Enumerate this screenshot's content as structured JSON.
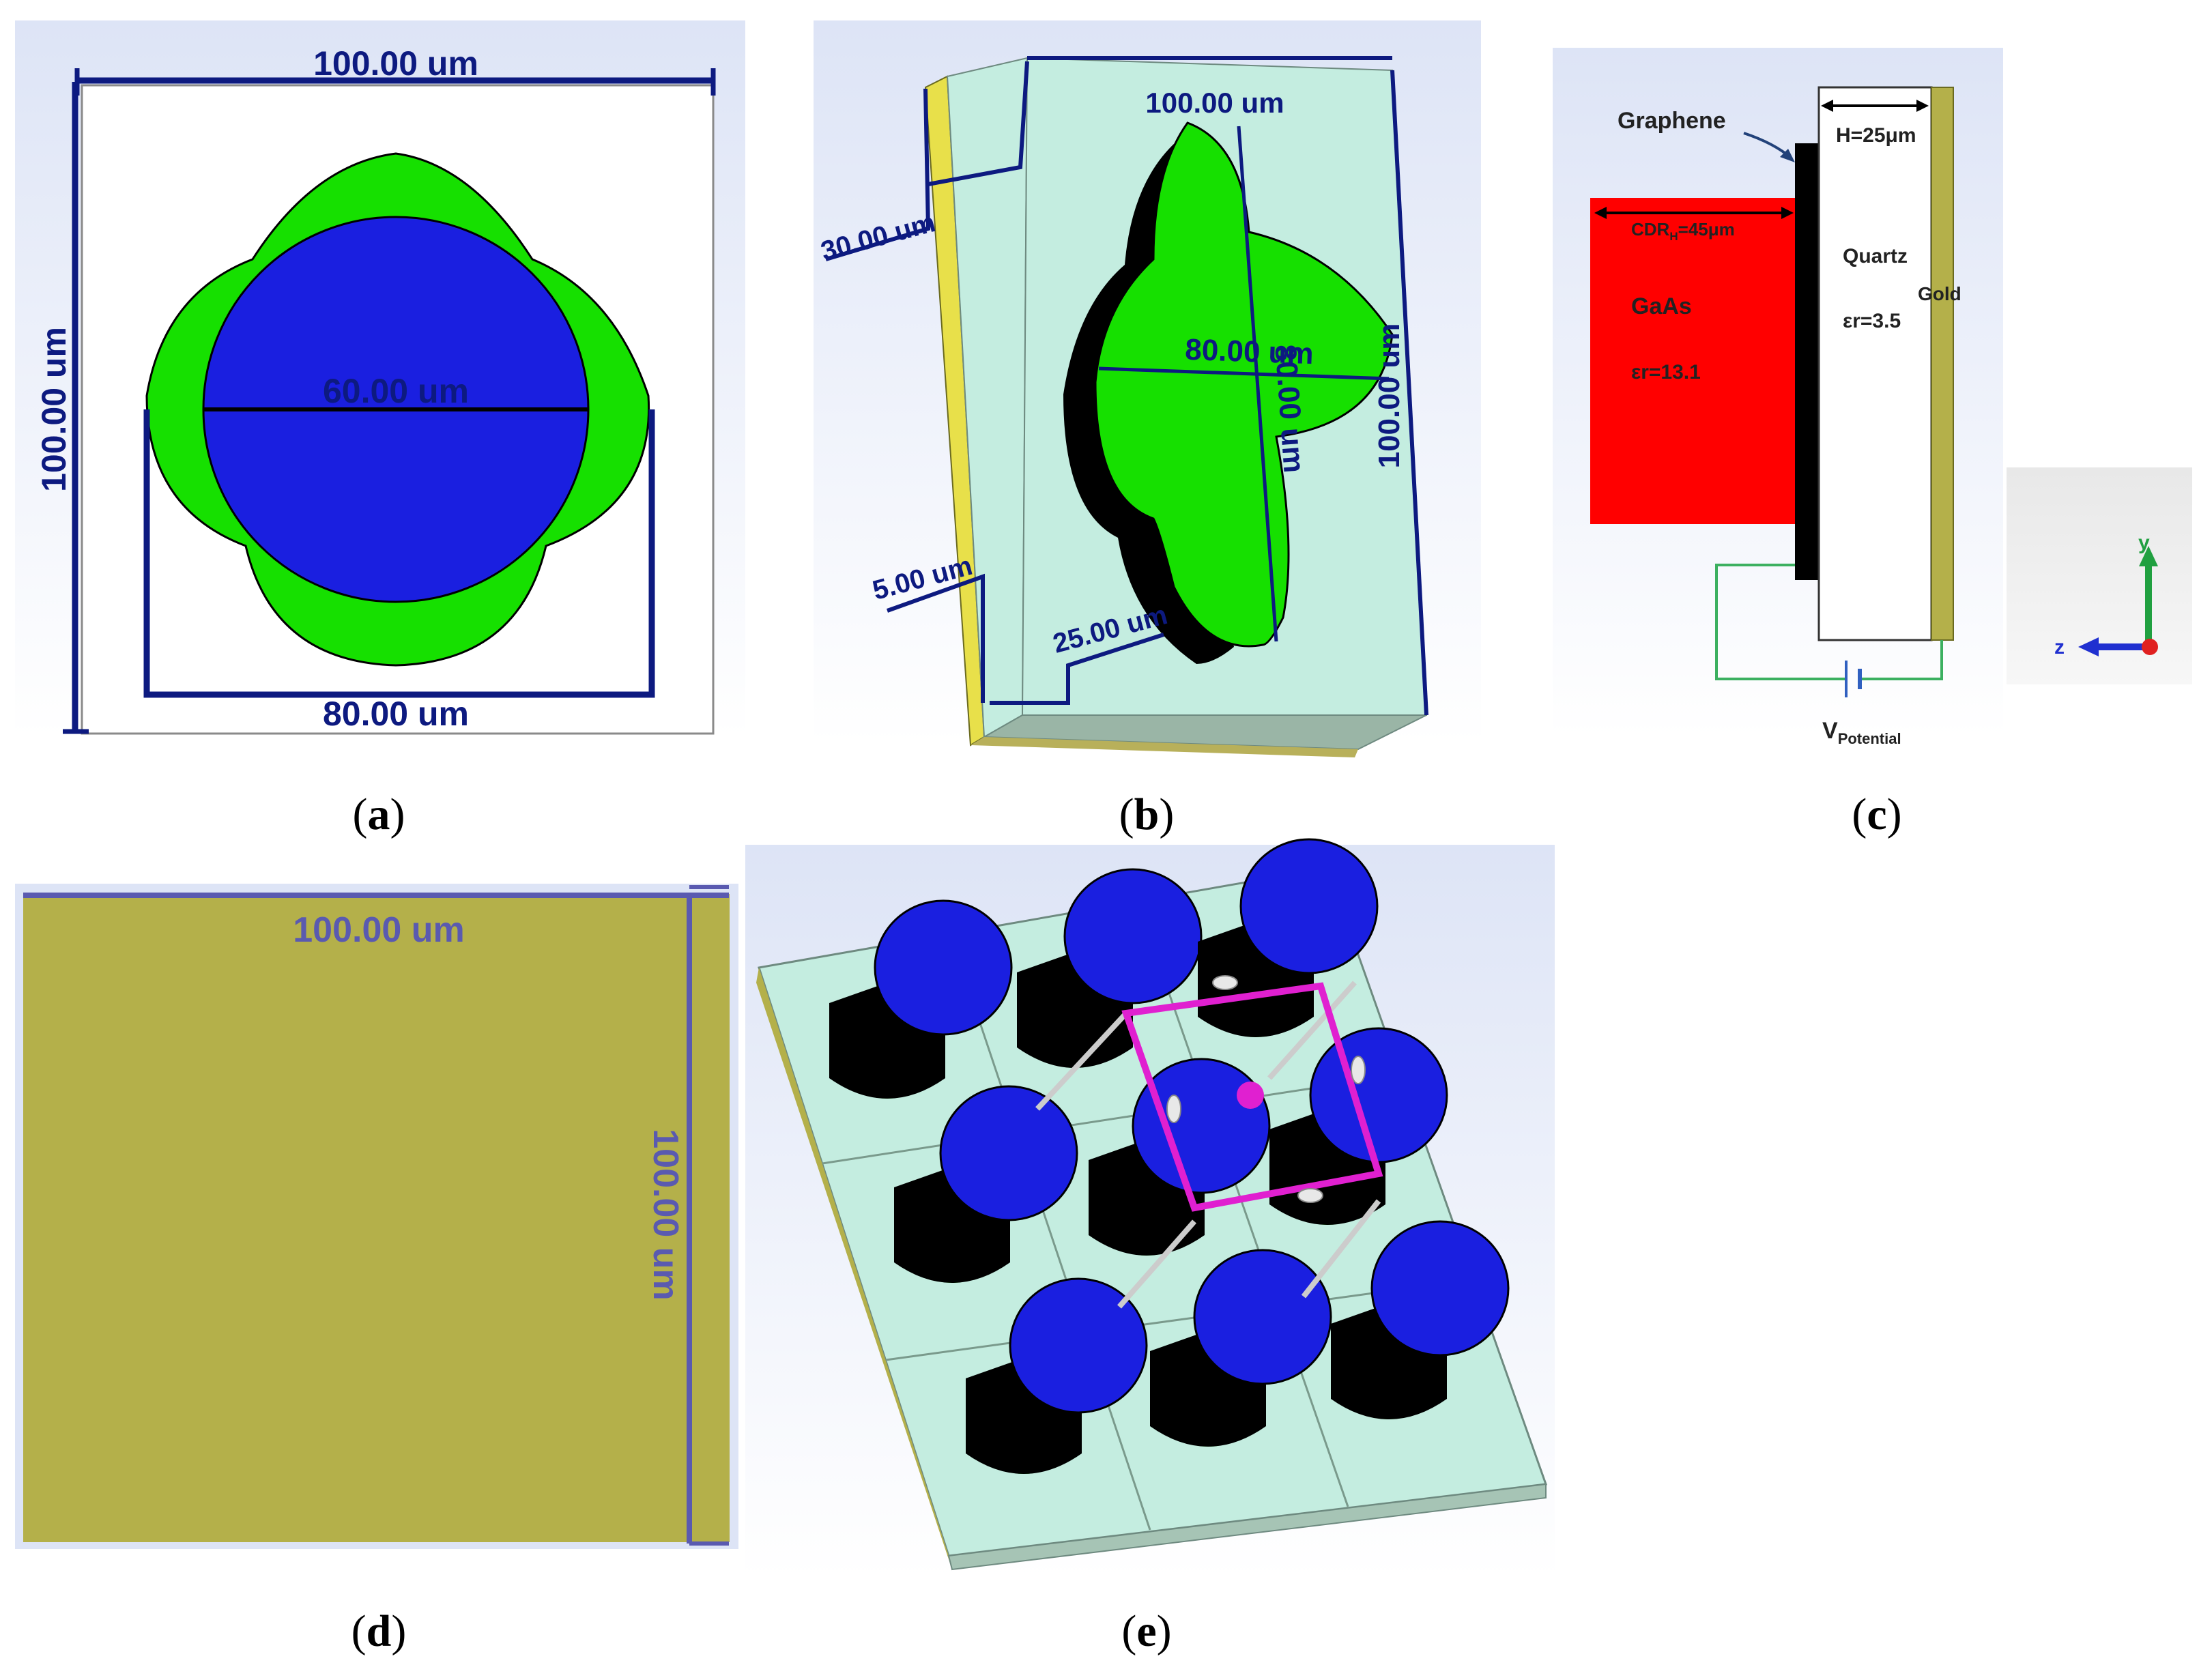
{
  "panels": {
    "a": {
      "caption_open": "(",
      "caption_letter": "a",
      "caption_close": ")",
      "dim_top": "100.00 um",
      "dim_left": "100.00 um",
      "dim_center": "60.00 um",
      "dim_bottom": "80.00 um"
    },
    "b": {
      "caption_open": "(",
      "caption_letter": "b",
      "caption_close": ")",
      "dim_top": "100.00 um",
      "dim_depth": "30.00 um",
      "dim_h": "80.00 um",
      "dim_v": "80.00 um",
      "dim_right": "100.00 um",
      "dim_gold": "5.00 um",
      "dim_quartz": "25.00 um"
    },
    "c": {
      "caption_open": "(",
      "caption_letter": "c",
      "caption_close": ")",
      "graphene": "Graphene",
      "height": "H=25μm",
      "cdr_prefix": "CDR",
      "cdr_sub": "H",
      "cdr_suffix": "=45μm",
      "quartz": "Quartz",
      "quartz_eps": "εr=3.5",
      "gold": "Gold",
      "gaas": "GaAs",
      "gaas_eps": "εr=13.1",
      "v_main": "V",
      "v_sub": "Potential",
      "axis_y": "y",
      "axis_z": "z"
    },
    "d": {
      "caption_open": "(",
      "caption_letter": "d",
      "caption_close": ")",
      "dim_top": "100.00 um",
      "dim_right": "100.00 um"
    },
    "e": {
      "caption_open": "(",
      "caption_letter": "e",
      "caption_close": ")"
    }
  },
  "colors": {
    "dimension_line": "#0d1a80",
    "patch_green": "#16e000",
    "resonator_blue": "#1a1fe0",
    "gaas_red": "#ff0000",
    "gold": "#b4b04a",
    "quartz": "#c4ede0",
    "port_magenta": "#e020d0"
  }
}
